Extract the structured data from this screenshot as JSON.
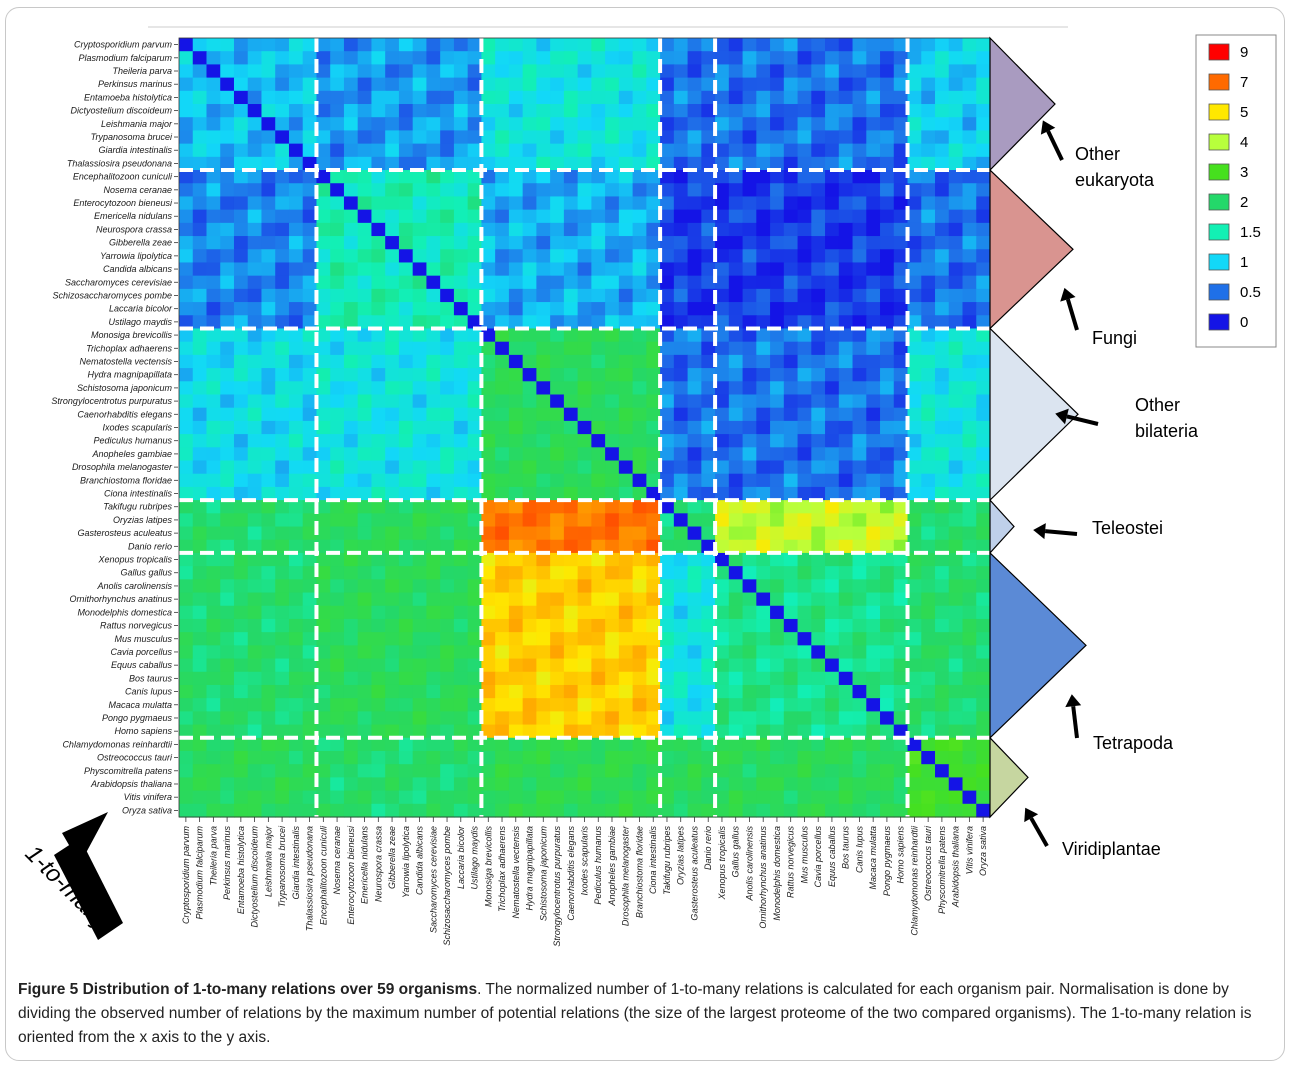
{
  "figure": {
    "caption_title": "Figure 5 Distribution of 1-to-many relations over 59 organisms",
    "caption_text": ". The normalized number of 1-to-many relations is calculated for each organism pair. Normalisation is done by dividing the observed number of relations by the maximum number of potential relations (the size of the largest proteome of the two compared organisms). The 1-to-many relation is oriented from the x axis to the y axis.",
    "arrow_label": "1-to-many"
  },
  "chart_data": {
    "type": "heatmap",
    "title": "",
    "xlabel": "",
    "ylabel": "",
    "organisms": [
      "Cryptosporidium parvum",
      "Plasmodium falciparum",
      "Theileria parva",
      "Perkinsus marinus",
      "Entamoeba histolytica",
      "Dictyostelium discoideum",
      "Leishmania major",
      "Trypanosoma brucei",
      "Giardia intestinalis",
      "Thalassiosira pseudonana",
      "Encephalitozoon cuniculi",
      "Nosema ceranae",
      "Enterocytozoon bieneusi",
      "Emericella nidulans",
      "Neurospora crassa",
      "Gibberella zeae",
      "Yarrowia lipolytica",
      "Candida albicans",
      "Saccharomyces cerevisiae",
      "Schizosaccharomyces pombe",
      "Laccaria bicolor",
      "Ustilago maydis",
      "Monosiga brevicollis",
      "Trichoplax adhaerens",
      "Nematostella vectensis",
      "Hydra magnipapillata",
      "Schistosoma japonicum",
      "Strongylocentrotus purpuratus",
      "Caenorhabditis elegans",
      "Ixodes scapularis",
      "Pediculus humanus",
      "Anopheles gambiae",
      "Drosophila melanogaster",
      "Branchiostoma floridae",
      "Ciona intestinalis",
      "Takifugu rubripes",
      "Oryzias latipes",
      "Gasterosteus aculeatus",
      "Danio rerio",
      "Xenopus tropicalis",
      "Gallus gallus",
      "Anolis carolinensis",
      "Ornithorhynchus anatinus",
      "Monodelphis domestica",
      "Rattus norvegicus",
      "Mus musculus",
      "Cavia porcellus",
      "Equus caballus",
      "Bos taurus",
      "Canis lupus",
      "Macaca mulatta",
      "Pongo pygmaeus",
      "Homo sapiens",
      "Chlamydomonas reinhardtii",
      "Ostreococcus tauri",
      "Physcomitrella patens",
      "Arabidopsis thaliana",
      "Vitis vinifera",
      "Oryza sativa"
    ],
    "groups": [
      {
        "name": "Other eukaryota",
        "line1": "Other",
        "line2": "eukaryota",
        "start": 0,
        "count": 10,
        "color": "#a99bc0"
      },
      {
        "name": "Fungi",
        "line1": "Fungi",
        "line2": "",
        "start": 10,
        "count": 12,
        "color": "#d99490"
      },
      {
        "name": "Other bilateria",
        "line1": "Other",
        "line2": "bilateria",
        "start": 22,
        "count": 13,
        "color": "#dbe4f0"
      },
      {
        "name": "Teleostei",
        "line1": "Teleostei",
        "line2": "",
        "start": 35,
        "count": 4,
        "color": "#bfd0ea"
      },
      {
        "name": "Tetrapoda",
        "line1": "Tetrapoda",
        "line2": "",
        "start": 39,
        "count": 14,
        "color": "#5b8ad6"
      },
      {
        "name": "Viridiplantae",
        "line1": "Viridiplantae",
        "line2": "",
        "start": 53,
        "count": 6,
        "color": "#c6d6a0"
      }
    ],
    "legend": [
      {
        "label": "9",
        "color": "#ff0000"
      },
      {
        "label": "7",
        "color": "#ff6a00"
      },
      {
        "label": "5",
        "color": "#ffe800"
      },
      {
        "label": "4",
        "color": "#b8ff3c"
      },
      {
        "label": "3",
        "color": "#46e01e"
      },
      {
        "label": "2",
        "color": "#24d86a"
      },
      {
        "label": "1.5",
        "color": "#12f0b4"
      },
      {
        "label": "1",
        "color": "#12d8f8"
      },
      {
        "label": "0.5",
        "color": "#1f70e8"
      },
      {
        "label": "0",
        "color": "#1414e6"
      }
    ],
    "legend_position": "top-right",
    "grid": false,
    "values_approx_by_group_block": {
      "rows_then_cols": [
        "Other eukaryota",
        "Fungi",
        "Other bilateria",
        "Teleostei",
        "Tetrapoda",
        "Viridiplantae"
      ],
      "matrix": [
        [
          0.9,
          0.7,
          1.2,
          0.5,
          0.5,
          1.0
        ],
        [
          0.6,
          1.5,
          0.8,
          0.2,
          0.2,
          0.5
        ],
        [
          1.1,
          1.2,
          2.2,
          0.5,
          0.5,
          1.2
        ],
        [
          2.0,
          2.2,
          6.8,
          2.0,
          4.2,
          2.0
        ],
        [
          2.0,
          2.2,
          5.4,
          1.2,
          1.8,
          2.0
        ],
        [
          2.2,
          2.0,
          2.3,
          2.2,
          2.2,
          2.8
        ]
      ]
    }
  }
}
